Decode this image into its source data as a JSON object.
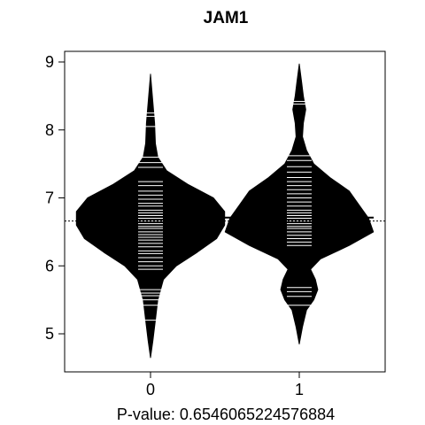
{
  "chart_data": {
    "type": "beanplot",
    "title": "JAM1",
    "xlabel": "P-value: 0.6546065224576884",
    "ylabel": "",
    "categories": [
      "0",
      "1"
    ],
    "y_ticks": [
      "5",
      "6",
      "7",
      "8",
      "9"
    ],
    "ylim": [
      4.5,
      9.2
    ],
    "grid": false,
    "overall_mean": 6.66,
    "series": [
      {
        "group_mean": 6.64,
        "density_profile": [
          [
            4.65,
            0.0
          ],
          [
            4.9,
            0.03
          ],
          [
            5.2,
            0.06
          ],
          [
            5.5,
            0.09
          ],
          [
            5.8,
            0.16
          ],
          [
            6.0,
            0.32
          ],
          [
            6.2,
            0.58
          ],
          [
            6.4,
            0.82
          ],
          [
            6.6,
            0.92
          ],
          [
            6.8,
            0.92
          ],
          [
            7.0,
            0.78
          ],
          [
            7.2,
            0.46
          ],
          [
            7.4,
            0.2
          ],
          [
            7.6,
            0.09
          ],
          [
            7.8,
            0.06
          ],
          [
            8.1,
            0.05
          ],
          [
            8.4,
            0.03
          ],
          [
            8.82,
            0.0
          ]
        ],
        "observations": [
          5.2,
          5.42,
          5.5,
          5.56,
          5.6,
          5.65,
          5.95,
          6.0,
          6.06,
          6.12,
          6.18,
          6.22,
          6.28,
          6.33,
          6.38,
          6.42,
          6.46,
          6.5,
          6.55,
          6.58,
          6.62,
          6.66,
          6.7,
          6.74,
          6.78,
          6.82,
          6.88,
          6.92,
          6.98,
          7.04,
          7.1,
          7.18,
          7.24,
          7.45,
          7.52,
          7.6,
          8.05,
          8.2,
          8.25
        ]
      },
      {
        "group_mean": 6.71,
        "density_profile": [
          [
            4.85,
            0.0
          ],
          [
            5.1,
            0.04
          ],
          [
            5.35,
            0.09
          ],
          [
            5.5,
            0.18
          ],
          [
            5.65,
            0.23
          ],
          [
            5.8,
            0.2
          ],
          [
            5.95,
            0.14
          ],
          [
            6.1,
            0.26
          ],
          [
            6.3,
            0.62
          ],
          [
            6.5,
            0.92
          ],
          [
            6.7,
            0.86
          ],
          [
            6.9,
            0.74
          ],
          [
            7.1,
            0.62
          ],
          [
            7.3,
            0.38
          ],
          [
            7.5,
            0.18
          ],
          [
            7.7,
            0.09
          ],
          [
            7.9,
            0.04
          ],
          [
            8.1,
            0.05
          ],
          [
            8.3,
            0.08
          ],
          [
            8.5,
            0.05
          ],
          [
            8.7,
            0.03
          ],
          [
            8.97,
            0.0
          ]
        ],
        "observations": [
          5.42,
          5.55,
          5.62,
          5.68,
          6.3,
          6.35,
          6.4,
          6.45,
          6.5,
          6.55,
          6.58,
          6.62,
          6.66,
          6.7,
          6.74,
          6.78,
          6.82,
          6.88,
          6.94,
          7.0,
          7.06,
          7.12,
          7.18,
          7.24,
          7.3,
          7.38,
          7.46,
          7.55,
          7.62,
          8.38,
          8.42
        ]
      }
    ]
  }
}
